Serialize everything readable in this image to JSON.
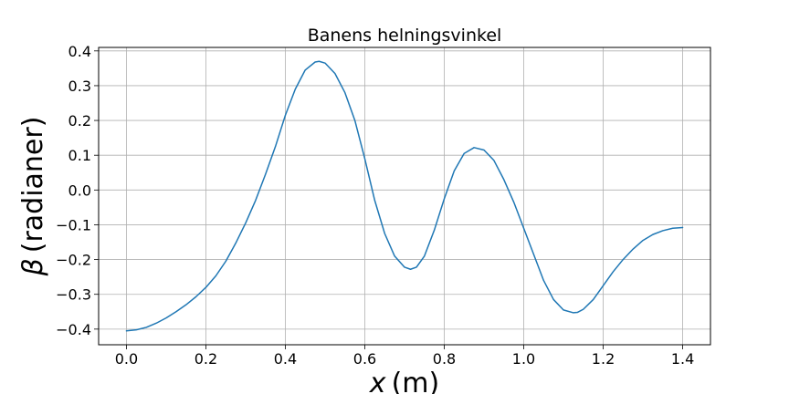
{
  "chart_data": {
    "type": "line",
    "title": "Banens helningsvinkel",
    "xlabel": "x (m)",
    "xlabel_var": "x",
    "xlabel_unit": "(m)",
    "ylabel": "β (radianer)",
    "ylabel_var": "β",
    "ylabel_unit": "(radianer)",
    "xlim": [
      -0.07,
      1.47
    ],
    "ylim": [
      -0.445,
      0.41
    ],
    "grid": true,
    "line_color": "#1f77b4",
    "x_ticks": [
      0.0,
      0.2,
      0.4,
      0.6,
      0.8,
      1.0,
      1.2,
      1.4
    ],
    "x_tick_labels": [
      "0.0",
      "0.2",
      "0.4",
      "0.6",
      "0.8",
      "1.0",
      "1.2",
      "1.4"
    ],
    "y_ticks": [
      -0.4,
      -0.3,
      -0.2,
      -0.1,
      0.0,
      0.1,
      0.2,
      0.3,
      0.4
    ],
    "y_tick_labels": [
      "−0.4",
      "−0.3",
      "−0.2",
      "−0.1",
      "0.0",
      "0.1",
      "0.2",
      "0.3",
      "0.4"
    ],
    "series": [
      {
        "x": [
          0.0,
          0.025,
          0.05,
          0.075,
          0.1,
          0.125,
          0.15,
          0.175,
          0.2,
          0.225,
          0.25,
          0.275,
          0.3,
          0.325,
          0.35,
          0.375,
          0.4,
          0.425,
          0.45,
          0.475,
          0.485,
          0.5,
          0.525,
          0.55,
          0.575,
          0.6,
          0.625,
          0.65,
          0.675,
          0.7,
          0.715,
          0.73,
          0.75,
          0.775,
          0.8,
          0.825,
          0.85,
          0.875,
          0.9,
          0.925,
          0.95,
          0.975,
          1.0,
          1.025,
          1.05,
          1.075,
          1.1,
          1.125,
          1.135,
          1.15,
          1.175,
          1.2,
          1.225,
          1.25,
          1.275,
          1.3,
          1.325,
          1.35,
          1.375,
          1.4
        ],
        "y": [
          -0.405,
          -0.402,
          -0.395,
          -0.383,
          -0.368,
          -0.35,
          -0.33,
          -0.307,
          -0.28,
          -0.247,
          -0.205,
          -0.153,
          -0.095,
          -0.03,
          0.045,
          0.125,
          0.215,
          0.29,
          0.345,
          0.368,
          0.37,
          0.365,
          0.335,
          0.28,
          0.2,
          0.09,
          -0.03,
          -0.125,
          -0.19,
          -0.222,
          -0.228,
          -0.222,
          -0.19,
          -0.115,
          -0.025,
          0.055,
          0.105,
          0.122,
          0.115,
          0.085,
          0.03,
          -0.035,
          -0.11,
          -0.185,
          -0.26,
          -0.315,
          -0.345,
          -0.353,
          -0.352,
          -0.343,
          -0.315,
          -0.275,
          -0.235,
          -0.2,
          -0.17,
          -0.145,
          -0.128,
          -0.117,
          -0.11,
          -0.108
        ]
      }
    ]
  }
}
